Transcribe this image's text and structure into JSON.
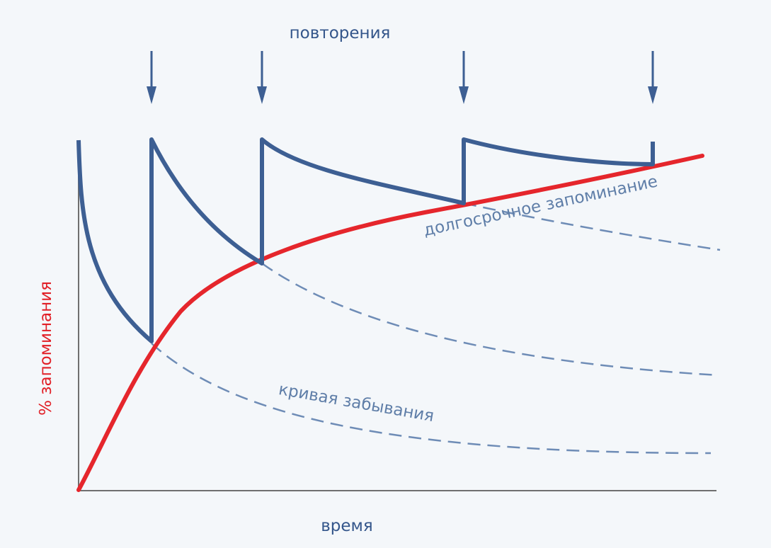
{
  "labels": {
    "top": "повторения",
    "x_axis": "время",
    "y_axis": "% запоминания",
    "long_term": "долгосрочное запоминание",
    "forgetting": "кривая забывания"
  },
  "repetitions_count": 4,
  "colors": {
    "background": "#f4f7fa",
    "retention_curve": "#3d5f93",
    "long_term_curve": "#e5262c",
    "forgetting_dashed": "#6e8cb6",
    "axis": "#6f6f6f",
    "y_axis_label": "#e11f26"
  }
}
